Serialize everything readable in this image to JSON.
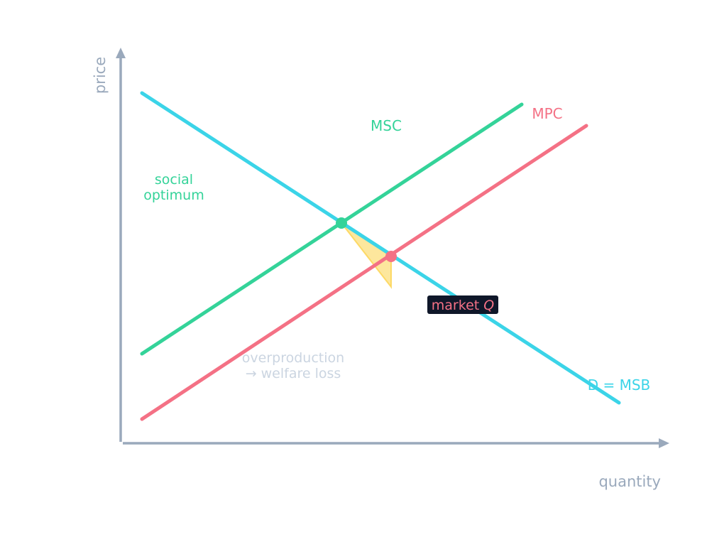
{
  "axes": {
    "x_label": "quantity",
    "y_label": "price"
  },
  "curves": {
    "msc": {
      "label": "MSC",
      "color": "#34d399"
    },
    "mpc": {
      "label": "MPC",
      "color": "#f47185"
    },
    "demand": {
      "label": "D = MSB",
      "color": "#3bd4e8"
    }
  },
  "annotations": {
    "social_optimum": {
      "line1": "social",
      "line2": "optimum",
      "color": "#34d399"
    },
    "market_q": {
      "prefix": "market ",
      "symbol": "Q",
      "color": "#f47185",
      "background": "#0f1729"
    },
    "welfare_loss": {
      "line1": "overproduction",
      "line2": "→ welfare loss",
      "color": "#cbd5e1"
    }
  },
  "deadweight_loss": {
    "color": "#fcd34d"
  },
  "axis_color": "#9aa9bc"
}
